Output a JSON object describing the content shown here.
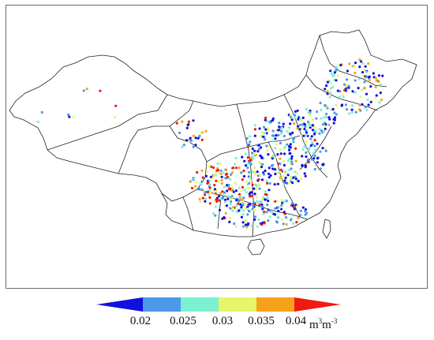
{
  "legend": {
    "colors": [
      "#1010e0",
      "#4a9ae8",
      "#7df0d2",
      "#e6f56a",
      "#f5a21a",
      "#f01a10"
    ],
    "ticks": [
      "0.02",
      "0.025",
      "0.03",
      "0.035",
      "0.04"
    ],
    "unit_base": "m",
    "unit_exp1": "3",
    "unit_mid": "m",
    "unit_exp2": "-3"
  },
  "map": {
    "stroke_color": "#222222",
    "point_density_note": "dense in east/central, sparse in west"
  }
}
